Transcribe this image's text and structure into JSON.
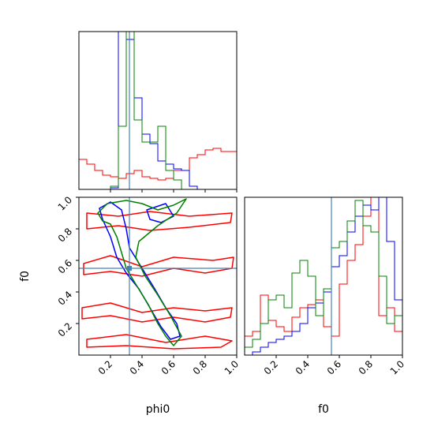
{
  "chart_data": {
    "type": "corner",
    "parameters": [
      "phi0",
      "f0"
    ],
    "truths": {
      "phi0": 0.32,
      "f0": 0.55
    },
    "truth_color": "#4682b4",
    "series": [
      {
        "color": "#ff0000"
      },
      {
        "color": "#0000ff"
      },
      {
        "color": "#008000"
      }
    ],
    "panels": [
      {
        "id": "phi0-hist",
        "type": "step-histogram",
        "xlim": [
          0,
          1
        ],
        "bin_edges": [
          0,
          0.05,
          0.1,
          0.15,
          0.2,
          0.25,
          0.3,
          0.35,
          0.4,
          0.45,
          0.5,
          0.55,
          0.6,
          0.65,
          0.7,
          0.75,
          0.8,
          0.85,
          0.9,
          0.95,
          1.0
        ],
        "ymax": 1.0,
        "histograms": [
          {
            "color": "#ff0000",
            "values": [
              0.19,
              0.16,
              0.12,
              0.09,
              0.08,
              0.07,
              0.1,
              0.12,
              0.08,
              0.07,
              0.06,
              0.07,
              0.12,
              0.12,
              0.2,
              0.22,
              0.25,
              0.26,
              0.24,
              0.24
            ]
          },
          {
            "color": "#0000ff",
            "values": [
              0,
              0,
              0,
              0,
              0.01,
              1.0,
              0.95,
              0.58,
              0.35,
              0.29,
              0.18,
              0.16,
              0.13,
              0.12,
              0.02,
              0,
              0,
              0,
              0,
              0
            ]
          },
          {
            "color": "#008000",
            "values": [
              0,
              0,
              0,
              0,
              0.02,
              0.4,
              1.0,
              0.44,
              0.3,
              0.3,
              0.4,
              0.12,
              0.06,
              0,
              0,
              0,
              0,
              0,
              0,
              0
            ]
          }
        ]
      },
      {
        "id": "phi0-f0-contour",
        "type": "contour",
        "xlim": [
          0,
          1
        ],
        "ylim": [
          0,
          1
        ],
        "yticks": [
          0.2,
          0.4,
          0.6,
          0.8,
          1.0
        ],
        "ytick_labels": [
          "0.2",
          "0.4",
          "0.6",
          "0.8",
          "1.0"
        ],
        "contours": [
          {
            "color": "#ff0000",
            "points": [
              [
                0.05,
                0.9
              ],
              [
                0.25,
                0.88
              ],
              [
                0.45,
                0.91
              ],
              [
                0.7,
                0.88
              ],
              [
                0.97,
                0.9
              ],
              [
                0.96,
                0.84
              ],
              [
                0.7,
                0.81
              ],
              [
                0.45,
                0.79
              ],
              [
                0.25,
                0.82
              ],
              [
                0.05,
                0.8
              ]
            ]
          },
          {
            "color": "#ff0000",
            "points": [
              [
                0.03,
                0.58
              ],
              [
                0.2,
                0.63
              ],
              [
                0.4,
                0.56
              ],
              [
                0.6,
                0.62
              ],
              [
                0.85,
                0.6
              ],
              [
                0.98,
                0.62
              ],
              [
                0.97,
                0.55
              ],
              [
                0.8,
                0.52
              ],
              [
                0.6,
                0.55
              ],
              [
                0.4,
                0.5
              ],
              [
                0.2,
                0.53
              ],
              [
                0.03,
                0.51
              ]
            ]
          },
          {
            "color": "#ff0000",
            "points": [
              [
                0.02,
                0.3
              ],
              [
                0.2,
                0.33
              ],
              [
                0.4,
                0.27
              ],
              [
                0.6,
                0.3
              ],
              [
                0.8,
                0.28
              ],
              [
                0.97,
                0.3
              ],
              [
                0.96,
                0.24
              ],
              [
                0.8,
                0.21
              ],
              [
                0.6,
                0.24
              ],
              [
                0.4,
                0.21
              ],
              [
                0.2,
                0.25
              ],
              [
                0.02,
                0.23
              ]
            ]
          },
          {
            "color": "#ff0000",
            "points": [
              [
                0.05,
                0.1
              ],
              [
                0.3,
                0.13
              ],
              [
                0.55,
                0.08
              ],
              [
                0.8,
                0.12
              ],
              [
                0.97,
                0.09
              ],
              [
                0.9,
                0.05
              ],
              [
                0.6,
                0.04
              ],
              [
                0.3,
                0.06
              ],
              [
                0.05,
                0.05
              ]
            ]
          },
          {
            "color": "#0000ff",
            "points": [
              [
                0.13,
                0.93
              ],
              [
                0.2,
                0.97
              ],
              [
                0.27,
                0.92
              ],
              [
                0.3,
                0.8
              ],
              [
                0.32,
                0.68
              ],
              [
                0.4,
                0.55
              ],
              [
                0.48,
                0.42
              ],
              [
                0.55,
                0.3
              ],
              [
                0.62,
                0.2
              ],
              [
                0.64,
                0.12
              ],
              [
                0.58,
                0.1
              ],
              [
                0.52,
                0.18
              ],
              [
                0.45,
                0.3
              ],
              [
                0.38,
                0.42
              ],
              [
                0.3,
                0.52
              ],
              [
                0.24,
                0.62
              ],
              [
                0.2,
                0.75
              ],
              [
                0.15,
                0.86
              ]
            ]
          },
          {
            "color": "#0000ff",
            "points": [
              [
                0.43,
                0.92
              ],
              [
                0.55,
                0.96
              ],
              [
                0.6,
                0.88
              ],
              [
                0.52,
                0.84
              ],
              [
                0.45,
                0.86
              ]
            ]
          },
          {
            "color": "#008000",
            "points": [
              [
                0.12,
                0.9
              ],
              [
                0.18,
                0.96
              ],
              [
                0.3,
                0.98
              ],
              [
                0.4,
                0.96
              ],
              [
                0.5,
                0.92
              ],
              [
                0.6,
                0.95
              ],
              [
                0.68,
                0.99
              ],
              [
                0.62,
                0.9
              ],
              [
                0.5,
                0.82
              ],
              [
                0.38,
                0.72
              ],
              [
                0.36,
                0.62
              ],
              [
                0.42,
                0.5
              ],
              [
                0.5,
                0.38
              ],
              [
                0.58,
                0.25
              ],
              [
                0.65,
                0.12
              ],
              [
                0.6,
                0.06
              ],
              [
                0.55,
                0.12
              ],
              [
                0.5,
                0.2
              ],
              [
                0.44,
                0.32
              ],
              [
                0.36,
                0.45
              ],
              [
                0.3,
                0.55
              ],
              [
                0.27,
                0.65
              ],
              [
                0.24,
                0.75
              ],
              [
                0.2,
                0.83
              ],
              [
                0.15,
                0.85
              ]
            ]
          }
        ]
      },
      {
        "id": "f0-hist",
        "type": "step-histogram",
        "xlim": [
          0,
          1
        ],
        "bin_edges": [
          0,
          0.05,
          0.1,
          0.15,
          0.2,
          0.25,
          0.3,
          0.35,
          0.4,
          0.45,
          0.5,
          0.55,
          0.6,
          0.65,
          0.7,
          0.75,
          0.8,
          0.85,
          0.9,
          0.95,
          1.0
        ],
        "ymax": 1.0,
        "histograms": [
          {
            "color": "#ff0000",
            "values": [
              0.12,
              0.15,
              0.38,
              0.22,
              0.18,
              0.15,
              0.24,
              0.3,
              0.32,
              0.35,
              0.18,
              0.12,
              0.45,
              0.6,
              0.7,
              0.88,
              1.0,
              0.25,
              0.3,
              0.15
            ]
          },
          {
            "color": "#0000ff",
            "values": [
              0.0,
              0.02,
              0.05,
              0.08,
              0.1,
              0.12,
              0.15,
              0.2,
              0.3,
              0.33,
              0.4,
              0.56,
              0.63,
              0.78,
              0.88,
              0.95,
              0.92,
              1.0,
              0.72,
              0.35
            ]
          },
          {
            "color": "#008000",
            "values": [
              0.05,
              0.1,
              0.2,
              0.35,
              0.38,
              0.3,
              0.52,
              0.6,
              0.5,
              0.25,
              0.42,
              0.68,
              0.72,
              0.85,
              0.98,
              0.82,
              0.78,
              0.5,
              0.2,
              0.25
            ]
          }
        ]
      }
    ],
    "xticks": [
      0.2,
      0.4,
      0.6,
      0.8,
      1.0
    ],
    "xtick_labels": [
      "0.2",
      "0.4",
      "0.6",
      "0.8",
      "1.0"
    ],
    "xlabels": {
      "phi0": "phi0",
      "f0": "f0"
    },
    "ylabels": {
      "f0": "f0"
    }
  }
}
